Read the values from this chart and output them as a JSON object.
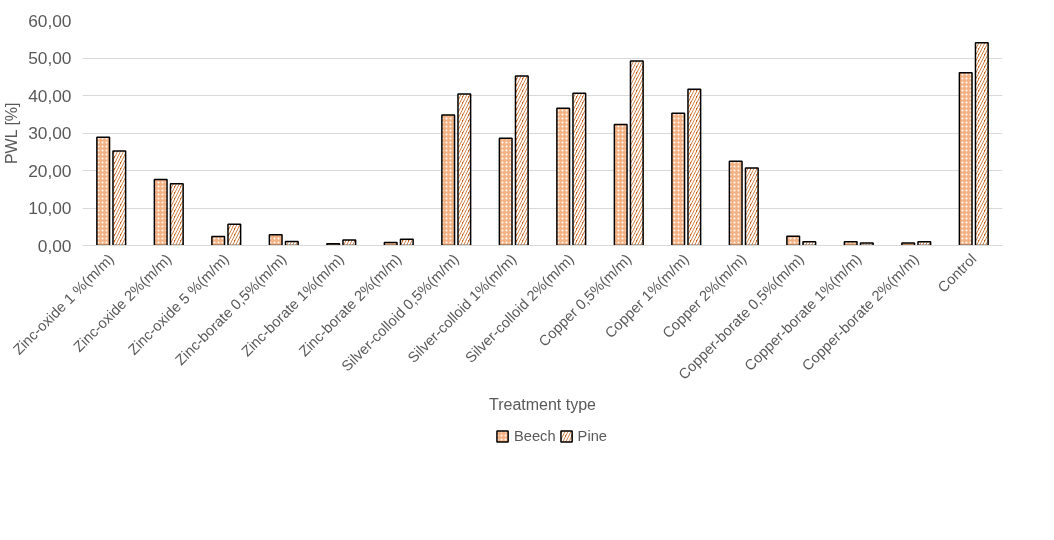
{
  "chart_data": {
    "type": "bar",
    "xlabel": "Treatment type",
    "ylabel": "PWL [%]",
    "categories": [
      "Zinc-oxide 1 %(m/m)",
      "Zinc-oxide 2%(m/m)",
      "Zinc-oxide 5 %(m/m)",
      "Zinc-borate 0,5%(m/m)",
      "Zinc-borate 1%(m/m)",
      "Zinc-borate 2%(m/m)",
      "Silver-colloid 0,5%(m/m)",
      "Silver-colloid 1%(m/m)",
      "Silver-colloid 2%(m/m)",
      "Copper 0,5%(m/m)",
      "Copper 1%(m/m)",
      "Copper 2%(m/m)",
      "Copper-borate 0,5%(m/m)",
      "Copper-borate 1%(m/m)",
      "Copper-borate 2%(m/m)",
      "Control"
    ],
    "series": [
      {
        "name": "Beech",
        "color": "#f4b183",
        "values": [
          28.9,
          17.6,
          2.4,
          2.9,
          0.5,
          0.8,
          34.8,
          28.6,
          36.6,
          32.3,
          35.3,
          22.5,
          2.5,
          1.0,
          0.7,
          46.1
        ]
      },
      {
        "name": "Pine",
        "color": "#c55a11",
        "values": [
          25.2,
          16.5,
          5.7,
          1.1,
          1.5,
          1.7,
          40.4,
          45.2,
          40.6,
          49.2,
          41.7,
          20.7,
          1.0,
          0.7,
          1.0,
          54.1
        ]
      }
    ],
    "ylim": [
      0,
      60
    ],
    "yticks": [
      {
        "value": 0,
        "label": "0,00"
      },
      {
        "value": 10,
        "label": "10,00"
      },
      {
        "value": 20,
        "label": "20,00"
      },
      {
        "value": 30,
        "label": "30,00"
      },
      {
        "value": 40,
        "label": "40,00"
      },
      {
        "value": 50,
        "label": "50,00"
      },
      {
        "value": 60,
        "label": "60,00"
      }
    ],
    "grid": "y",
    "legend": "bottom"
  }
}
